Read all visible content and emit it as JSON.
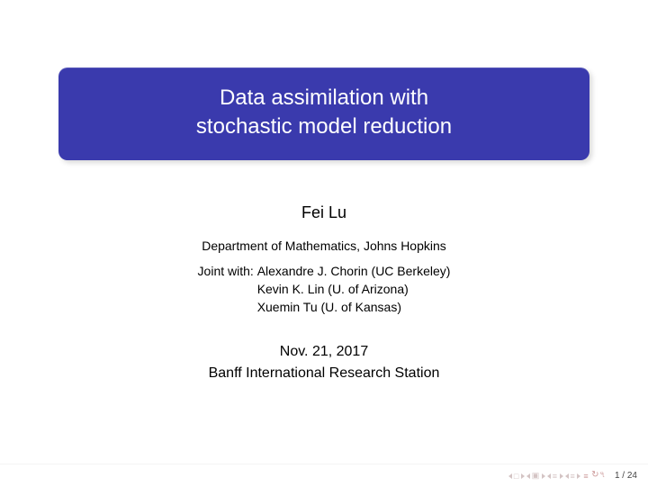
{
  "title": {
    "line1": "Data assimilation with",
    "line2": "stochastic model reduction",
    "bg_color": "#3a3aad",
    "text_color": "#ffffff",
    "fontsize": 24,
    "border_radius": 10
  },
  "author": "Fei Lu",
  "department": "Department of Mathematics, Johns Hopkins",
  "joint_label": "Joint with: ",
  "collaborators": [
    "Alexandre J. Chorin (UC Berkeley)",
    "Kevin K. Lin (U. of Arizona)",
    "Xuemin Tu (U. of Kansas)"
  ],
  "date": "Nov. 21, 2017",
  "venue": "Banff International Research Station",
  "page": {
    "current": 1,
    "total": 24,
    "label": "1 / 24"
  },
  "colors": {
    "background": "#ffffff",
    "text": "#000000",
    "nav_icon": "#d4c4c4",
    "nav_icon_accent": "#c99999"
  },
  "fontsizes": {
    "author": 18,
    "dept": 14,
    "joint": 14,
    "date": 16,
    "venue": 16,
    "pagenum": 10
  }
}
